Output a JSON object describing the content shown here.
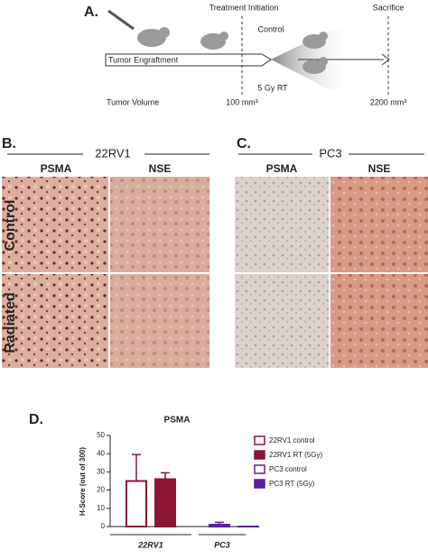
{
  "panel_a": {
    "label": "A.",
    "treatment": "Treatment Initiation",
    "sacrifice": "Sacrifice",
    "control": "Control",
    "engraftment": "Tumor  Engraftment",
    "rt": "5 Gy RT",
    "volume": "Tumor Volume",
    "start_volume": "100 mm³",
    "end_volume": "2200 mm³"
  },
  "panel_b": {
    "label": "B.",
    "cell_line": "22RV1",
    "columns": [
      "PSMA",
      "NSE"
    ],
    "rows": [
      "Control",
      "Radiated"
    ]
  },
  "panel_c": {
    "label": "C.",
    "cell_line": "PC3",
    "columns": [
      "PSMA",
      "NSE"
    ]
  },
  "panel_d": {
    "label": "D."
  },
  "chart_data": {
    "type": "bar",
    "title": "PSMA",
    "y_label": "H-Score (out of 300)",
    "categories": [
      "22RV1",
      "PC3"
    ],
    "series": [
      {
        "name": "22RV1 control",
        "color": "#8b1535",
        "filled": false,
        "values": [
          25,
          null
        ],
        "errors": [
          14.5,
          null
        ]
      },
      {
        "name": "22RV1 RT (5Gy)",
        "color": "#8b1535",
        "filled": true,
        "values": [
          26,
          null
        ],
        "errors": [
          3.5,
          null
        ]
      },
      {
        "name": "PC3 control",
        "color": "#5b1fa0",
        "filled": false,
        "values": [
          null,
          1
        ],
        "errors": [
          null,
          1.3
        ]
      },
      {
        "name": "PC3 RT (5Gy)",
        "color": "#5b1fa0",
        "filled": true,
        "values": [
          null,
          0
        ],
        "errors": [
          null,
          null
        ]
      }
    ],
    "ylim": [
      0,
      50
    ],
    "yticks": [
      0,
      10,
      20,
      30,
      40,
      50
    ]
  }
}
